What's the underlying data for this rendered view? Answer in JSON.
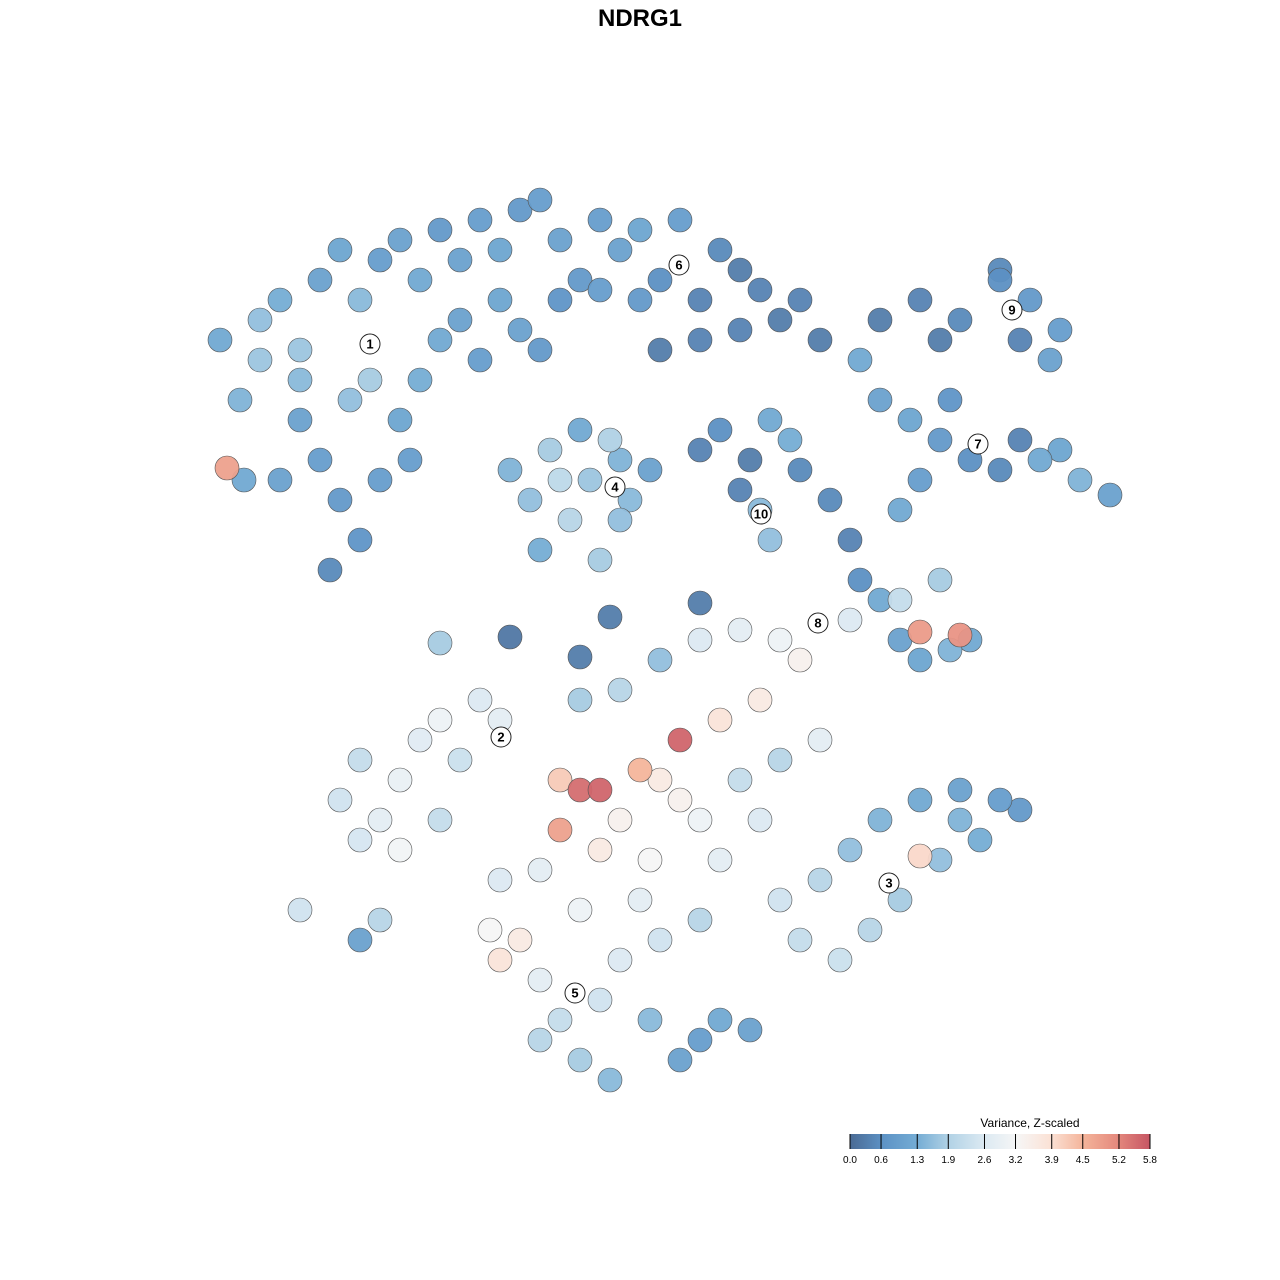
{
  "chart_data": {
    "type": "scatter",
    "title": "NDRG1",
    "xlabel": "",
    "ylabel": "",
    "xlim": [
      -45,
      50
    ],
    "ylim": [
      -46,
      46
    ],
    "grid": false,
    "axes_visible": false,
    "legend": {
      "title": "Variance, Z-scaled",
      "placement": "bottom-right",
      "range": [
        0,
        5.8
      ],
      "ticks": [
        "0.0",
        "0.6",
        "1.3",
        "1.9",
        "2.6",
        "3.2",
        "3.9",
        "4.5",
        "5.2",
        "5.8"
      ],
      "colors": [
        "#4a6a94",
        "#5d93c6",
        "#74acd4",
        "#b3d3e6",
        "#dbe9f2",
        "#f6f6f6",
        "#fbe2d6",
        "#f4b49a",
        "#e58a7e",
        "#c65563"
      ]
    },
    "point_columns": [
      "x",
      "y",
      "value"
    ],
    "points": [
      [
        -42,
        30,
        1.2
      ],
      [
        -40,
        24,
        1.4
      ],
      [
        -38,
        32,
        1.6
      ],
      [
        -36,
        34,
        1.3
      ],
      [
        -34,
        29,
        1.7
      ],
      [
        -32,
        36,
        1.0
      ],
      [
        -30,
        39,
        1.1
      ],
      [
        -28,
        34,
        1.5
      ],
      [
        -26,
        38,
        0.9
      ],
      [
        -24,
        40,
        1.0
      ],
      [
        -22,
        36,
        1.2
      ],
      [
        -20,
        41,
        0.8
      ],
      [
        -18,
        38,
        1.0
      ],
      [
        -16,
        42,
        0.9
      ],
      [
        -14,
        39,
        1.1
      ],
      [
        -12,
        43,
        0.8
      ],
      [
        -10,
        44,
        0.9
      ],
      [
        -8,
        40,
        1.0
      ],
      [
        -34,
        22,
        1.0
      ],
      [
        -32,
        18,
        0.9
      ],
      [
        -30,
        14,
        0.8
      ],
      [
        -28,
        10,
        0.7
      ],
      [
        -31,
        7,
        0.5
      ],
      [
        -26,
        16,
        0.9
      ],
      [
        -24,
        22,
        1.1
      ],
      [
        -22,
        26,
        1.3
      ],
      [
        -20,
        30,
        1.2
      ],
      [
        -18,
        32,
        1.0
      ],
      [
        -16,
        28,
        0.9
      ],
      [
        -14,
        34,
        1.1
      ],
      [
        -12,
        31,
        1.0
      ],
      [
        -10,
        29,
        0.8
      ],
      [
        -29,
        24,
        1.6
      ],
      [
        -36,
        16,
        1.0
      ],
      [
        -27,
        26,
        1.8
      ],
      [
        -23,
        18,
        0.9
      ],
      [
        -34,
        26,
        1.5
      ],
      [
        -38,
        28,
        1.7
      ],
      [
        -8,
        34,
        0.7
      ],
      [
        -6,
        36,
        0.8
      ],
      [
        -4,
        42,
        0.9
      ],
      [
        -2,
        39,
        1.0
      ],
      [
        0,
        41,
        1.1
      ],
      [
        2,
        36,
        0.6
      ],
      [
        4,
        42,
        0.9
      ],
      [
        6,
        34,
        0.4
      ],
      [
        8,
        39,
        0.5
      ],
      [
        10,
        37,
        0.3
      ],
      [
        12,
        35,
        0.4
      ],
      [
        14,
        32,
        0.3
      ],
      [
        16,
        34,
        0.4
      ],
      [
        18,
        30,
        0.3
      ],
      [
        0,
        34,
        0.8
      ],
      [
        6,
        30,
        0.4
      ],
      [
        2,
        29,
        0.3
      ],
      [
        10,
        31,
        0.4
      ],
      [
        -4,
        35,
        0.9
      ],
      [
        24,
        32,
        0.3
      ],
      [
        28,
        34,
        0.4
      ],
      [
        32,
        32,
        0.5
      ],
      [
        36,
        36,
        0.6
      ],
      [
        39,
        34,
        0.8
      ],
      [
        42,
        31,
        0.9
      ],
      [
        41,
        28,
        1.0
      ],
      [
        38,
        30,
        0.4
      ],
      [
        30,
        30,
        0.3
      ],
      [
        36,
        37,
        0.5
      ],
      [
        22,
        28,
        1.2
      ],
      [
        24,
        24,
        1.0
      ],
      [
        27,
        22,
        1.1
      ],
      [
        30,
        20,
        0.8
      ],
      [
        33,
        18,
        0.6
      ],
      [
        36,
        17,
        0.5
      ],
      [
        40,
        18,
        1.2
      ],
      [
        44,
        16,
        1.4
      ],
      [
        47,
        14.5,
        1.0
      ],
      [
        28,
        16,
        0.9
      ],
      [
        26,
        13,
        1.2
      ],
      [
        31,
        24,
        0.7
      ],
      [
        38,
        20,
        0.4
      ],
      [
        42,
        19,
        1.1
      ],
      [
        -13,
        17,
        1.4
      ],
      [
        -11,
        14,
        1.6
      ],
      [
        -9,
        19,
        1.8
      ],
      [
        -7,
        12,
        2.0
      ],
      [
        -5,
        16,
        1.7
      ],
      [
        -3,
        20,
        1.9
      ],
      [
        -1,
        14,
        1.5
      ],
      [
        1,
        17,
        1.0
      ],
      [
        -10,
        9,
        1.3
      ],
      [
        -4,
        8,
        1.8
      ],
      [
        -2,
        12,
        1.6
      ],
      [
        -6,
        21,
        1.2
      ],
      [
        -8,
        16,
        2.1
      ],
      [
        -2,
        18,
        1.4
      ],
      [
        6,
        19,
        0.4
      ],
      [
        8,
        21,
        0.6
      ],
      [
        11,
        18,
        0.3
      ],
      [
        13,
        22,
        1.2
      ],
      [
        15,
        20,
        1.3
      ],
      [
        12,
        13,
        1.5
      ],
      [
        13,
        10,
        1.6
      ],
      [
        10,
        15,
        0.4
      ],
      [
        16,
        17,
        0.5
      ],
      [
        19,
        14,
        0.5
      ],
      [
        21,
        10,
        0.4
      ],
      [
        22,
        6,
        0.6
      ],
      [
        24,
        4,
        1.2
      ],
      [
        26,
        0,
        1.0
      ],
      [
        28,
        -2,
        1.1
      ],
      [
        31,
        -1,
        1.4
      ],
      [
        33,
        0,
        1.2
      ],
      [
        30,
        6,
        1.8
      ],
      [
        26,
        4,
        2.2
      ],
      [
        32,
        0.5,
        5.0
      ],
      [
        28,
        0.8,
        4.9
      ],
      [
        21,
        2,
        2.6
      ],
      [
        -30,
        -16,
        2.4
      ],
      [
        -28,
        -12,
        2.2
      ],
      [
        -26,
        -18,
        2.8
      ],
      [
        -24,
        -14,
        2.9
      ],
      [
        -22,
        -10,
        2.7
      ],
      [
        -20,
        -8,
        3.0
      ],
      [
        -18,
        -12,
        2.3
      ],
      [
        -16,
        -6,
        2.6
      ],
      [
        -14,
        -8,
        2.8
      ],
      [
        -24,
        -21,
        3.1
      ],
      [
        -28,
        -20,
        2.5
      ],
      [
        -20,
        -18,
        2.2
      ],
      [
        -34,
        -27,
        2.4
      ],
      [
        -28,
        -30,
        1.0
      ],
      [
        -26,
        -28,
        2.0
      ],
      [
        -6,
        -6,
        1.8
      ],
      [
        -2,
        -5,
        2.0
      ],
      [
        2,
        -2,
        1.6
      ],
      [
        6,
        0,
        2.6
      ],
      [
        10,
        1,
        2.8
      ],
      [
        14,
        0,
        3.0
      ],
      [
        16,
        -2,
        3.4
      ],
      [
        12,
        -6,
        3.6
      ],
      [
        8,
        -8,
        3.8
      ],
      [
        4,
        -10,
        5.6
      ],
      [
        -4,
        -15,
        5.6
      ],
      [
        -6,
        -15,
        5.5
      ],
      [
        -8,
        -19,
        4.8
      ],
      [
        -8,
        -14,
        4.2
      ],
      [
        0,
        -13,
        4.5
      ],
      [
        2,
        -14,
        3.6
      ],
      [
        4,
        -16,
        3.4
      ],
      [
        -2,
        -18,
        3.4
      ],
      [
        6,
        -18,
        3.0
      ],
      [
        10,
        -14,
        2.2
      ],
      [
        14,
        -12,
        2.0
      ],
      [
        18,
        -10,
        2.8
      ],
      [
        12,
        -18,
        2.6
      ],
      [
        8,
        -22,
        2.8
      ],
      [
        1,
        -22,
        3.2
      ],
      [
        -4,
        -21,
        3.6
      ],
      [
        -10,
        -23,
        2.8
      ],
      [
        -14,
        -24,
        2.6
      ],
      [
        14,
        -26,
        2.4
      ],
      [
        16,
        -30,
        2.2
      ],
      [
        18,
        -24,
        2.0
      ],
      [
        21,
        -21,
        1.6
      ],
      [
        24,
        -18,
        1.4
      ],
      [
        28,
        -16,
        1.2
      ],
      [
        32,
        -15,
        1.0
      ],
      [
        36,
        -16,
        0.9
      ],
      [
        38,
        -17,
        0.8
      ],
      [
        34,
        -20,
        1.3
      ],
      [
        30,
        -22,
        1.6
      ],
      [
        26,
        -26,
        1.8
      ],
      [
        23,
        -29,
        2.0
      ],
      [
        20,
        -32,
        2.3
      ],
      [
        28,
        -21.6,
        4.0
      ],
      [
        32,
        -18,
        1.4
      ],
      [
        -15,
        -29,
        3.2
      ],
      [
        -14,
        -32,
        3.8
      ],
      [
        -12,
        -30,
        3.6
      ],
      [
        -10,
        -34,
        2.8
      ],
      [
        -8,
        -38,
        2.2
      ],
      [
        -6,
        -42,
        1.8
      ],
      [
        -4,
        -36,
        2.4
      ],
      [
        -2,
        -32,
        2.6
      ],
      [
        1,
        -38,
        1.5
      ],
      [
        4,
        -42,
        1.0
      ],
      [
        6,
        -40,
        0.9
      ],
      [
        8,
        -38,
        1.2
      ],
      [
        11,
        -39,
        1.0
      ],
      [
        -10,
        -40,
        2.0
      ],
      [
        -3,
        -44,
        1.5
      ],
      [
        2,
        -30,
        2.4
      ],
      [
        6,
        -28,
        2.0
      ],
      [
        -6,
        -27,
        3.0
      ],
      [
        0,
        -26,
        2.8
      ],
      [
        -41.3,
        17.2,
        4.8
      ],
      [
        -39.6,
        16,
        1.2
      ],
      [
        -20,
        -0.3,
        1.8
      ],
      [
        -13,
        0.3,
        0.2
      ],
      [
        -6,
        -1.7,
        0.3
      ],
      [
        -3,
        2.3,
        0.3
      ],
      [
        6,
        3.7,
        0.3
      ]
    ],
    "cluster_labels": [
      {
        "label": "1",
        "x": -27,
        "y": 29.6
      },
      {
        "label": "2",
        "x": -13.9,
        "y": -9.7
      },
      {
        "label": "3",
        "x": 24.9,
        "y": -24.3
      },
      {
        "label": "4",
        "x": -2.5,
        "y": 15.3
      },
      {
        "label": "5",
        "x": -6.5,
        "y": -35.3
      },
      {
        "label": "6",
        "x": 3.9,
        "y": 37.5
      },
      {
        "label": "7",
        "x": 33.8,
        "y": 19.6
      },
      {
        "label": "8",
        "x": 17.8,
        "y": 1.7
      },
      {
        "label": "9",
        "x": 37.2,
        "y": 33
      },
      {
        "label": "10",
        "x": 12.1,
        "y": 12.6
      }
    ]
  }
}
